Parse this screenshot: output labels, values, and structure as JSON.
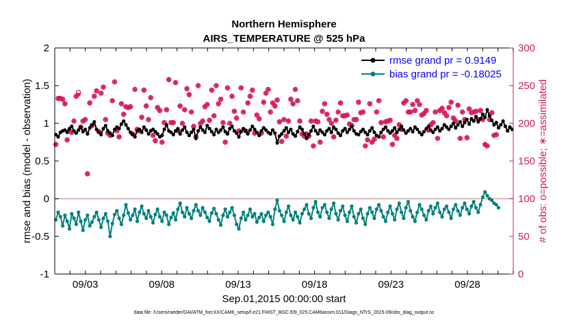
{
  "chart_data": {
    "type": "line",
    "title": "Northern Hemisphere",
    "subtitle": "AIRS_TEMPERATURE @ 525 hPa",
    "xlabel": "Sep.01,2015 00:00:00 start",
    "ylabel": "rmse and bias (model - observation)",
    "ylabel_right": "# of obs: o=possible; ∗=assimilated",
    "footnote": "data file: /Users/raeder/DAI/ATM_forcXX/CAM6_setup/f.e21.FHIST_BGC.f09_025.CAM6assim.011/Diags_NTrS_2015-09/obs_diag_output.nc",
    "xlim": [
      1.0,
      31.0
    ],
    "ylim": [
      -1,
      2
    ],
    "ylim_right": [
      0,
      300
    ],
    "x_ticks": [
      3,
      8,
      13,
      18,
      23,
      28
    ],
    "x_tick_labels": [
      "09/03",
      "09/08",
      "09/13",
      "09/18",
      "09/23",
      "09/28"
    ],
    "y_ticks": [
      -1,
      -0.5,
      0,
      0.5,
      1,
      1.5,
      2
    ],
    "y_tick_labels": [
      "-1",
      "-0.5",
      "0",
      "0.5",
      "1",
      "1.5",
      "2"
    ],
    "y_right_ticks": [
      0,
      50,
      100,
      150,
      200,
      250,
      300
    ],
    "y_right_tick_labels": [
      "0",
      "50",
      "100",
      "150",
      "200",
      "250",
      "300"
    ],
    "colors": {
      "rmse": "#000000",
      "bias": "#008080",
      "obs": "#d6185a",
      "zero_line": "#c8a8a8"
    },
    "legend_position": "top-right",
    "series": [
      {
        "name": "rmse grand pr = 0.9149",
        "key": "rmse",
        "values": [
          0.85,
          0.82,
          0.88,
          0.9,
          0.91,
          0.88,
          0.93,
          0.96,
          0.9,
          0.87,
          0.91,
          0.95,
          0.89,
          0.92,
          0.86,
          0.94,
          0.98,
          1.02,
          0.92,
          0.88,
          0.85,
          0.93,
          0.97,
          0.9,
          0.87,
          0.84,
          0.92,
          0.95,
          0.93,
          0.99,
          1.03,
          0.98,
          0.93,
          0.88,
          0.85,
          0.82,
          0.9,
          0.92,
          0.88,
          0.95,
          0.91,
          0.86,
          0.9,
          0.92,
          0.89,
          0.86,
          0.82,
          0.84,
          0.92,
          0.98,
          0.9,
          0.88,
          0.85,
          0.9,
          0.93,
          0.86,
          0.91,
          0.95,
          0.88,
          0.84,
          0.88,
          0.92,
          0.8,
          0.9,
          0.95,
          0.91,
          0.88,
          0.97,
          0.93,
          0.89,
          0.85,
          0.92,
          0.88,
          0.91,
          0.95,
          0.89,
          0.86,
          0.93,
          0.96,
          0.9,
          0.87,
          0.82,
          0.89,
          0.93,
          0.9,
          0.86,
          0.91,
          0.96,
          0.92,
          0.88,
          0.84,
          0.9,
          0.94,
          0.91,
          0.88,
          0.86,
          0.91,
          0.87,
          0.74,
          0.83,
          0.86,
          0.9,
          0.94,
          0.88,
          0.92,
          0.86,
          0.83,
          0.89,
          0.95,
          0.92,
          0.86,
          0.8,
          0.85,
          0.9,
          0.96,
          0.9,
          0.86,
          0.91,
          0.88,
          0.85,
          0.9,
          0.93,
          0.88,
          0.95,
          0.92,
          0.87,
          0.84,
          0.9,
          0.93,
          0.88,
          0.92,
          0.96,
          0.9,
          0.86,
          0.85,
          0.89,
          0.92,
          0.88,
          0.85,
          0.9,
          0.94,
          0.88,
          0.84,
          0.82,
          0.88,
          0.92,
          0.95,
          0.9,
          0.87,
          0.9,
          0.94,
          0.88,
          0.92,
          0.96,
          0.91,
          0.87,
          0.9,
          0.93,
          0.89,
          0.95,
          0.92,
          0.88,
          0.85,
          0.89,
          0.93,
          0.96,
          0.91,
          0.88,
          0.92,
          0.95,
          0.9,
          0.93,
          0.98,
          0.95,
          0.92,
          0.96,
          1.0,
          0.94,
          0.98,
          1.02,
          0.96,
          1.01,
          1.05,
          0.99,
          1.06,
          1.03,
          1.09,
          1.02,
          1.06,
          1.12,
          1.08,
          1.18,
          1.1,
          1.04,
          0.98,
          1.01,
          0.94,
          0.98,
          1.03,
          0.96,
          0.9,
          0.95,
          0.92
        ]
      },
      {
        "name": "bias grand pr = -0.18025",
        "key": "bias",
        "values": [
          -0.28,
          -0.18,
          -0.24,
          -0.36,
          -0.22,
          -0.3,
          -0.4,
          -0.2,
          -0.26,
          -0.34,
          -0.18,
          -0.3,
          -0.42,
          -0.28,
          -0.22,
          -0.36,
          -0.31,
          -0.24,
          -0.18,
          -0.28,
          -0.38,
          -0.26,
          -0.2,
          -0.3,
          -0.5,
          -0.33,
          -0.21,
          -0.16,
          -0.26,
          -0.34,
          -0.22,
          -0.08,
          -0.19,
          -0.28,
          -0.22,
          -0.14,
          -0.3,
          -0.18,
          -0.1,
          -0.2,
          -0.26,
          -0.16,
          -0.24,
          -0.32,
          -0.21,
          -0.14,
          -0.24,
          -0.3,
          -0.18,
          -0.22,
          -0.34,
          -0.25,
          -0.19,
          -0.28,
          -0.14,
          -0.06,
          -0.18,
          -0.24,
          -0.12,
          -0.2,
          -0.26,
          -0.16,
          -0.08,
          -0.16,
          -0.22,
          -0.12,
          -0.18,
          -0.25,
          -0.3,
          -0.19,
          -0.13,
          -0.2,
          -0.28,
          -0.35,
          -0.22,
          -0.14,
          -0.24,
          -0.18,
          -0.12,
          -0.22,
          -0.34,
          -0.4,
          -0.26,
          -0.18,
          -0.28,
          -0.22,
          -0.14,
          -0.24,
          -0.2,
          -0.31,
          -0.25,
          -0.2,
          -0.3,
          -0.22,
          -0.18,
          -0.24,
          -0.34,
          -0.14,
          -0.02,
          -0.16,
          -0.22,
          -0.3,
          -0.18,
          -0.1,
          -0.22,
          -0.28,
          -0.18,
          -0.24,
          -0.32,
          -0.2,
          -0.14,
          -0.08,
          -0.2,
          -0.26,
          -0.12,
          -0.04,
          -0.18,
          -0.24,
          -0.12,
          -0.08,
          -0.18,
          -0.26,
          -0.14,
          -0.06,
          -0.2,
          -0.28,
          -0.16,
          -0.1,
          -0.22,
          -0.3,
          -0.18,
          -0.1,
          -0.24,
          -0.32,
          -0.2,
          -0.14,
          -0.26,
          -0.34,
          -0.2,
          -0.12,
          -0.18,
          -0.26,
          -0.14,
          -0.08,
          -0.16,
          -0.24,
          -0.3,
          -0.18,
          -0.1,
          -0.2,
          -0.28,
          -0.14,
          -0.06,
          -0.18,
          -0.26,
          -0.12,
          -0.04,
          -0.16,
          -0.24,
          -0.3,
          -0.18,
          -0.08,
          -0.14,
          -0.22,
          -0.28,
          -0.16,
          -0.1,
          -0.2,
          -0.12,
          -0.06,
          -0.18,
          -0.24,
          -0.14,
          -0.1,
          -0.18,
          -0.26,
          -0.14,
          -0.08,
          -0.16,
          -0.22,
          -0.12,
          -0.06,
          -0.14,
          -0.2,
          -0.1,
          -0.04,
          -0.12,
          -0.18,
          -0.08,
          0.02,
          0.09,
          0.04,
          0.0,
          -0.02,
          -0.06,
          -0.08,
          -0.12
        ]
      },
      {
        "name": "obs possible",
        "key": "obs_possible",
        "marker": "o",
        "values": [
          172,
          233,
          233,
          232,
          226,
          178,
          190,
          188,
          203,
          236,
          241,
          195,
          203,
          205,
          133,
          227,
          197,
          236,
          243,
          189,
          240,
          248,
          205,
          187,
          184,
          230,
          255,
          190,
          182,
          226,
          212,
          222,
          221,
          222,
          186,
          245,
          192,
          190,
          208,
          244,
          223,
          205,
          234,
          184,
          177,
          221,
          217,
          175,
          201,
          218,
          258,
          201,
          201,
          254,
          190,
          223,
          200,
          218,
          246,
          238,
          215,
          196,
          182,
          250,
          200,
          203,
          222,
          225,
          204,
          244,
          210,
          250,
          226,
          232,
          201,
          175,
          247,
          200,
          236,
          216,
          207,
          190,
          247,
          215,
          190,
          227,
          236,
          244,
          187,
          211,
          206,
          187,
          228,
          240,
          245,
          215,
          227,
          223,
          231,
          202,
          176,
          205,
          183,
          203,
          232,
          226,
          245,
          230,
          203,
          186,
          183,
          186,
          183,
          203,
          170,
          203,
          202,
          175,
          216,
          226,
          212,
          205,
          200,
          182,
          204,
          215,
          227,
          210,
          210,
          211,
          199,
          197,
          205,
          205,
          228,
          214,
          215,
          170,
          178,
          226,
          175,
          179,
          215,
          230,
          201,
          182,
          202,
          203,
          204,
          172,
          184,
          180,
          198,
          192,
          227,
          230,
          215,
          215,
          225,
          217,
          230,
          225,
          211,
          213,
          217,
          191,
          198,
          201,
          215,
          180,
          217,
          220,
          214,
          210,
          221,
          228,
          207,
          203,
          224,
          180,
          215,
          205,
          181,
          219,
          214,
          215,
          216,
          205,
          217,
          205,
          172,
          170,
          205,
          214,
          184,
          185
        ]
      },
      {
        "name": "obs assimilated",
        "key": "obs_assimilated",
        "marker": "*",
        "values": [
          172,
          233,
          233,
          232,
          226,
          178,
          190,
          188,
          203,
          236,
          238,
          195,
          203,
          205,
          133,
          227,
          197,
          236,
          243,
          189,
          240,
          248,
          205,
          187,
          184,
          230,
          255,
          190,
          182,
          226,
          212,
          222,
          221,
          222,
          186,
          245,
          192,
          190,
          208,
          244,
          223,
          205,
          234,
          184,
          177,
          221,
          217,
          175,
          201,
          218,
          258,
          201,
          201,
          254,
          190,
          223,
          200,
          218,
          246,
          238,
          215,
          196,
          182,
          250,
          200,
          203,
          222,
          225,
          204,
          244,
          210,
          250,
          226,
          232,
          201,
          175,
          247,
          200,
          236,
          216,
          207,
          190,
          247,
          215,
          190,
          227,
          236,
          244,
          187,
          211,
          206,
          187,
          228,
          240,
          245,
          215,
          227,
          223,
          231,
          202,
          176,
          205,
          183,
          203,
          232,
          226,
          245,
          230,
          203,
          186,
          183,
          186,
          183,
          203,
          170,
          203,
          202,
          175,
          216,
          226,
          212,
          205,
          200,
          182,
          204,
          215,
          227,
          210,
          210,
          211,
          199,
          197,
          205,
          205,
          228,
          214,
          215,
          170,
          178,
          226,
          175,
          179,
          215,
          230,
          201,
          182,
          202,
          203,
          204,
          172,
          184,
          180,
          198,
          192,
          227,
          230,
          215,
          215,
          225,
          217,
          230,
          225,
          211,
          213,
          217,
          191,
          198,
          201,
          215,
          180,
          217,
          220,
          214,
          210,
          221,
          228,
          207,
          203,
          224,
          180,
          215,
          205,
          181,
          219,
          214,
          215,
          216,
          205,
          217,
          205,
          172,
          170,
          205,
          214,
          184,
          185
        ]
      }
    ]
  }
}
